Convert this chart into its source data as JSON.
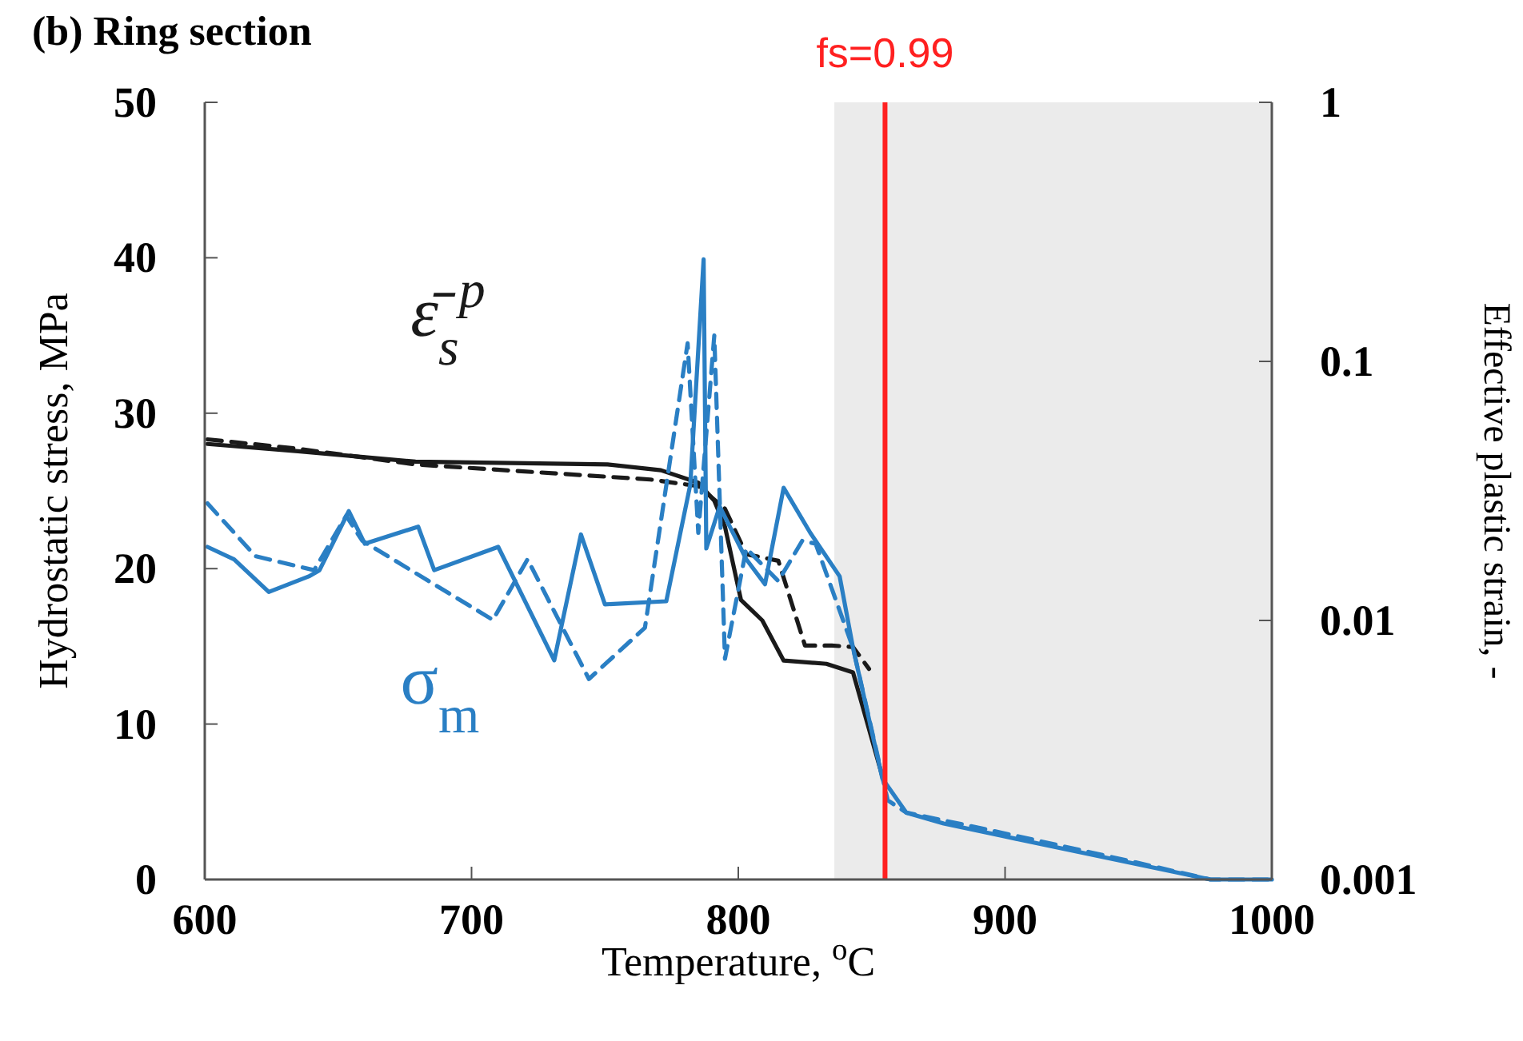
{
  "chart_data": {
    "type": "line",
    "title": "(b) Ring section",
    "xlabel": "Temperature, $^{o}$C",
    "ylabel": "Hydrostatic stress,  MPa",
    "y2label": "Effective plastic strain, -",
    "xlim": [
      600,
      1000
    ],
    "xticks": [
      600,
      700,
      800,
      900,
      1000
    ],
    "ylim": [
      0,
      50
    ],
    "yticks": [
      0,
      10,
      20,
      30,
      40,
      50
    ],
    "y2lim": [
      0.001,
      1
    ],
    "y2ticks": [
      0.001,
      0.01,
      0.1,
      1
    ],
    "log": "y2",
    "grid": false,
    "marker": "none",
    "series": [
      {
        "color": "#1a1a1a",
        "axis": "y2",
        "line_style": "solid",
        "x": [
          601,
          635,
          679,
          751,
          771,
          785,
          791,
          795,
          801,
          809,
          817,
          833,
          843,
          854
        ],
        "values": [
          0.048,
          0.045,
          0.041,
          0.04,
          0.038,
          0.034,
          0.029,
          0.023,
          0.012,
          0.01,
          0.007,
          0.0068,
          0.0063,
          0.0025
        ]
      },
      {
        "color": "#1a1a1a",
        "axis": "y2",
        "line_style": "dashed",
        "x": [
          601,
          635,
          679,
          767,
          785,
          795,
          803,
          815,
          825,
          835,
          843,
          849
        ],
        "values": [
          0.05,
          0.046,
          0.04,
          0.035,
          0.033,
          0.027,
          0.018,
          0.017,
          0.008,
          0.008,
          0.0079,
          0.0065
        ]
      },
      {
        "color": "#2a7fc4",
        "line_style": "solid",
        "x": [
          601,
          611,
          624,
          639,
          643,
          654,
          660,
          680,
          686,
          710,
          731,
          741,
          750,
          773,
          782,
          787,
          788,
          793,
          803,
          810,
          817,
          827,
          838,
          843,
          854,
          863,
          877,
          899,
          949,
          977,
          1000
        ],
        "values": [
          21.4,
          20.6,
          18.5,
          19.5,
          19.9,
          23.7,
          21.6,
          22.7,
          19.9,
          21.4,
          14.1,
          22.2,
          17.7,
          17.9,
          25.4,
          39.9,
          21.3,
          24.0,
          20.6,
          19.0,
          25.2,
          22.3,
          19.5,
          14.9,
          6.5,
          4.3,
          3.6,
          2.8,
          1.0,
          0,
          0
        ]
      },
      {
        "color": "#2a7fc4",
        "line_style": "dashed",
        "x": [
          601,
          619,
          641,
          653,
          659,
          708,
          721,
          744,
          765,
          781,
          785,
          791,
          795,
          803,
          815,
          824,
          829,
          843,
          856,
          863,
          877,
          899,
          949,
          977,
          1000
        ],
        "values": [
          24.2,
          20.8,
          19.9,
          23.4,
          21.8,
          16.7,
          20.6,
          12.9,
          16.2,
          34.5,
          22.3,
          35.0,
          14.2,
          21.3,
          19.2,
          21.8,
          21.6,
          14.9,
          5.1,
          4.3,
          3.8,
          3.0,
          1.1,
          0,
          0
        ]
      }
    ],
    "ref_lines": [
      {
        "axis": "x",
        "value": 855,
        "color": "#ff2020",
        "line_style": "solid"
      }
    ],
    "bands": [
      {
        "axis": "x",
        "from": 836,
        "to": 1000,
        "color": "#ebebeb"
      }
    ],
    "annotations": [
      "fs=0.99",
      "ε̄$_{s}$$^{p}$",
      "σ$_{m}$"
    ]
  }
}
